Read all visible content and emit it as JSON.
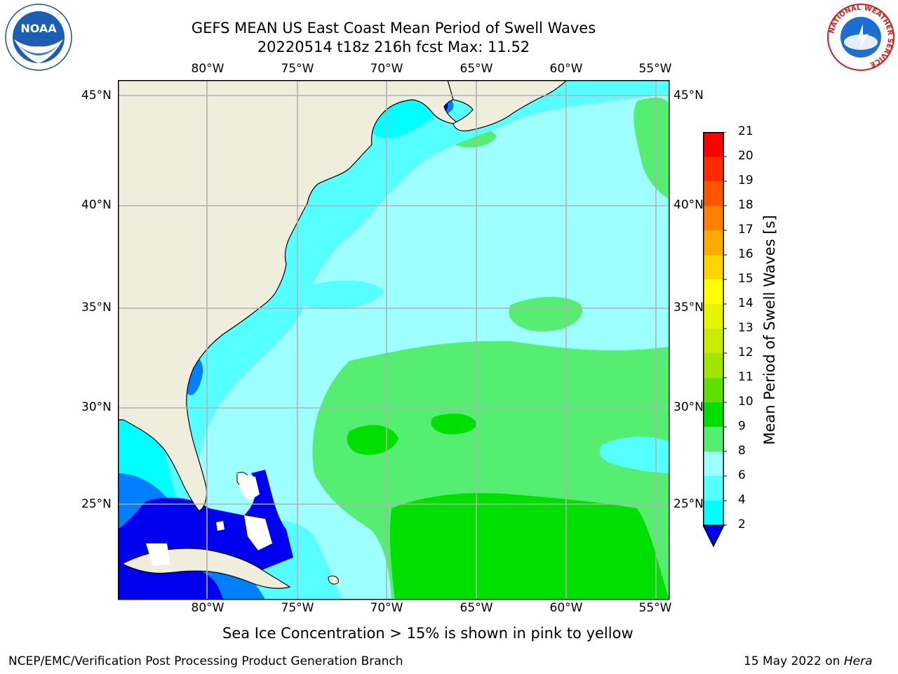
{
  "header": {
    "title_line1": "GEFS MEAN US East Coast Mean Period of Swell Waves",
    "title_line2": "20220514 t18z 216h fcst   Max: 11.52"
  },
  "logos": {
    "left": {
      "icon": "noaa-logo",
      "text": "NOAA"
    },
    "right": {
      "icon": "nws-logo",
      "ring_text": "NATIONAL WEATHER SERVICE"
    }
  },
  "map": {
    "lon_labels": [
      "80°W",
      "75°W",
      "70°W",
      "65°W",
      "60°W",
      "55°W"
    ],
    "lat_labels": [
      "45°N",
      "40°N",
      "35°N",
      "30°N",
      "25°N"
    ],
    "land_color": "#efeddc",
    "coast_color": "#000000",
    "grid_color": "#b0b0b0"
  },
  "colorbar": {
    "label": "Mean Period of Swell Waves [s]",
    "ticks": [
      "21",
      "20",
      "19",
      "18",
      "17",
      "16",
      "15",
      "14",
      "13",
      "12",
      "11",
      "10",
      "9",
      "8",
      "6",
      "4",
      "2"
    ],
    "colors": [
      "#ff0000",
      "#ff2a00",
      "#ff5500",
      "#ff7f00",
      "#ffaa00",
      "#ffd400",
      "#ffff00",
      "#e5f500",
      "#cbeb00",
      "#a0e400",
      "#5fe000",
      "#00e000",
      "#55ee70",
      "#9effff",
      "#55ffff",
      "#00ffff",
      "#0080ff",
      "#0000ee"
    ]
  },
  "footer": {
    "note": "Sea Ice Concentration > 15% is shown in pink to yellow",
    "left": "NCEP/EMC/Verification Post Processing Product Generation Branch",
    "right_date": "15 May 2022 on ",
    "right_host": "Hera"
  }
}
